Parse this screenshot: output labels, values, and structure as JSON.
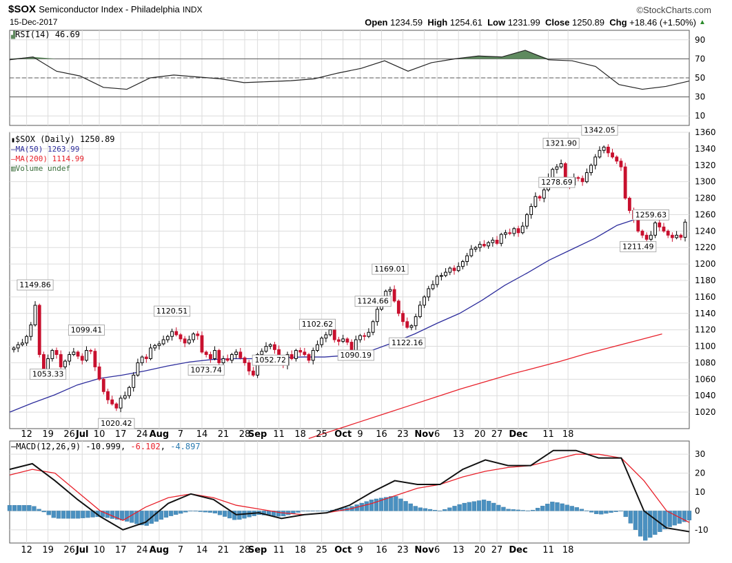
{
  "header": {
    "symbol": "$SOX",
    "name": "Semiconductor Index - Philadelphia",
    "exchange": "INDX",
    "date": "15-Dec-2017",
    "brand": "©StockCharts.com",
    "open_label": "Open",
    "open": "1234.59",
    "high_label": "High",
    "high": "1254.61",
    "low_label": "Low",
    "low": "1231.99",
    "close_label": "Close",
    "close": "1250.89",
    "chg_label": "Chg",
    "chg": "+18.46 (+1.50%)",
    "chg_arrow": "▲"
  },
  "legend": {
    "rsi": "RSI(14) 46.69",
    "price": "$SOX (Daily) 1250.89",
    "ma50": "MA(50) 1263.99",
    "ma200": "MA(200) 1114.99",
    "volume": "Volume undef",
    "macd_prefix": "MACD(12,26,9)",
    "macd": "-10.999",
    "signal": "-6.102",
    "hist": "-4.897"
  },
  "colors": {
    "up": "#000000",
    "down": "#c8102e",
    "ma50": "#2c2c9c",
    "ma200": "#e8202a",
    "rsi_fill": "#5f8a5f",
    "macd_hist": "#4a90c0",
    "grid": "#dcdcdc",
    "volume_legend": "#3c6e3c"
  },
  "chart_data": [
    {
      "type": "line",
      "name": "RSI(14)",
      "x_dates": [
        "2017-06-06",
        "2017-06-12",
        "2017-06-16",
        "2017-06-23",
        "2017-06-30",
        "2017-07-07",
        "2017-07-14",
        "2017-07-21",
        "2017-07-28",
        "2017-08-04",
        "2017-08-11",
        "2017-08-18",
        "2017-08-25",
        "2017-09-01",
        "2017-09-08",
        "2017-09-15",
        "2017-09-22",
        "2017-09-29",
        "2017-10-06",
        "2017-10-13",
        "2017-10-20",
        "2017-10-27",
        "2017-11-03",
        "2017-11-10",
        "2017-11-17",
        "2017-11-24",
        "2017-11-28",
        "2017-12-01",
        "2017-12-08",
        "2017-12-15"
      ],
      "values": [
        69,
        72,
        57,
        52,
        40,
        38,
        50,
        53,
        51,
        49,
        45,
        46,
        47,
        49,
        55,
        60,
        68,
        57,
        66,
        70,
        73,
        72,
        79,
        69,
        68,
        62,
        43,
        38,
        41,
        46.69
      ],
      "ylim": [
        0,
        100
      ],
      "levels": [
        30,
        50,
        70
      ],
      "yticks": [
        10,
        30,
        50,
        70,
        90
      ]
    },
    {
      "type": "candlestick",
      "name": "$SOX (Daily)",
      "ylim": [
        1000,
        1360
      ],
      "yticks": [
        1020,
        1040,
        1060,
        1080,
        1100,
        1120,
        1140,
        1160,
        1180,
        1200,
        1220,
        1240,
        1260,
        1280,
        1300,
        1320,
        1340,
        1360
      ],
      "x_tick_labels": [
        "12",
        "19",
        "26",
        "Jul",
        "10",
        "17",
        "24",
        "Aug",
        "7",
        "14",
        "21",
        "28",
        "Sep",
        "11",
        "18",
        "25",
        "Oct",
        "9",
        "16",
        "23",
        "Nov",
        "6",
        "13",
        "20",
        "27",
        "Dec",
        "11",
        "18"
      ],
      "closes": [
        1098,
        1102,
        1104,
        1112,
        1126,
        1149.86,
        1090,
        1070,
        1085,
        1095,
        1090,
        1075,
        1082,
        1090,
        1093,
        1088,
        1083,
        1095,
        1094,
        1075,
        1060,
        1045,
        1035,
        1030,
        1025,
        1037,
        1040,
        1050,
        1065,
        1080,
        1087,
        1085,
        1098,
        1101,
        1103,
        1108,
        1112,
        1118,
        1114,
        1109,
        1104,
        1108,
        1115,
        1113,
        1093,
        1090,
        1085,
        1095,
        1080,
        1085,
        1083,
        1090,
        1093,
        1086,
        1080,
        1070,
        1065,
        1090,
        1094,
        1100,
        1102,
        1096,
        1080,
        1077,
        1090,
        1085,
        1095,
        1093,
        1090,
        1083,
        1095,
        1102,
        1110,
        1114,
        1120,
        1108,
        1106,
        1109,
        1105,
        1095,
        1108,
        1113,
        1112,
        1117,
        1130,
        1145,
        1155,
        1167,
        1169.01,
        1155,
        1140,
        1130,
        1123,
        1125,
        1136,
        1150,
        1160,
        1170,
        1175,
        1185,
        1186,
        1190,
        1195,
        1192,
        1197,
        1203,
        1210,
        1218,
        1220,
        1224,
        1222,
        1226,
        1229,
        1225,
        1236,
        1238,
        1237,
        1243,
        1238,
        1246,
        1260,
        1270,
        1282,
        1280,
        1290,
        1305,
        1315,
        1318,
        1321.9,
        1302,
        1296,
        1305,
        1304,
        1300,
        1311,
        1320,
        1330,
        1338,
        1342.05,
        1335,
        1330,
        1325,
        1318,
        1280,
        1265,
        1255,
        1240,
        1235,
        1230,
        1235,
        1250,
        1245,
        1240,
        1235,
        1232,
        1235,
        1232.43,
        1250.89
      ],
      "high_labels": [
        {
          "index": 5,
          "text": "1149.86"
        },
        {
          "index": 17,
          "text": "1099.41"
        },
        {
          "index": 37,
          "text": "1120.51"
        },
        {
          "index": 71,
          "text": "1102.62"
        },
        {
          "index": 84,
          "text": "1124.66"
        },
        {
          "index": 88,
          "text": "1169.01"
        },
        {
          "index": 128,
          "text": "1321.90"
        },
        {
          "index": 137,
          "text": "1342.05"
        },
        {
          "index": 149,
          "text": "1259.63"
        }
      ],
      "low_labels": [
        {
          "index": 8,
          "text": "1053.33"
        },
        {
          "index": 24,
          "text": "1020.42"
        },
        {
          "index": 45,
          "text": "1073.74"
        },
        {
          "index": 60,
          "text": "1052.72"
        },
        {
          "index": 80,
          "text": "1090.19"
        },
        {
          "index": 92,
          "text": "1122.16"
        },
        {
          "index": 127,
          "text": "1278.69"
        },
        {
          "index": 146,
          "text": "1211.49"
        }
      ],
      "ma50": [
        1020,
        1031,
        1041,
        1053,
        1061,
        1065,
        1070,
        1076,
        1081,
        1084,
        1085,
        1085,
        1086,
        1087,
        1087,
        1089,
        1094,
        1104,
        1115,
        1128,
        1140,
        1156,
        1174,
        1189,
        1205,
        1218,
        1231,
        1247,
        1256,
        1263.99
      ],
      "ma200": [
        988,
        998,
        1008,
        1018,
        1028,
        1038,
        1048,
        1057,
        1066,
        1074,
        1082,
        1091,
        1099,
        1107,
        1114.99
      ]
    },
    {
      "type": "line",
      "name": "MACD(12,26,9)",
      "ylim": [
        -17,
        37
      ],
      "yticks": [
        -10,
        0,
        10,
        20,
        30
      ],
      "macd": [
        22,
        25,
        16,
        6,
        -3,
        -10,
        -6,
        4,
        9,
        6,
        -2,
        -1,
        -4,
        -2,
        -1,
        3,
        10,
        16,
        14,
        14,
        22,
        27,
        24,
        24,
        32,
        32,
        28,
        28,
        0,
        -9,
        -10.999
      ],
      "signal": [
        19,
        22,
        20,
        10,
        0,
        -5,
        2,
        7,
        9,
        7,
        3,
        1,
        -1,
        -2,
        -1,
        1,
        4,
        8,
        12,
        14,
        18,
        21,
        23,
        24,
        27,
        30,
        30,
        28,
        16,
        0,
        -6.102
      ],
      "hist": [
        3,
        3,
        -4,
        -4,
        -3,
        -5,
        -8,
        -3,
        0,
        -1,
        -5,
        -2,
        -3,
        0,
        0,
        2,
        6,
        8,
        2,
        0,
        4,
        6,
        1,
        0,
        5,
        2,
        -2,
        0,
        -16,
        -9,
        -4.897
      ]
    }
  ]
}
